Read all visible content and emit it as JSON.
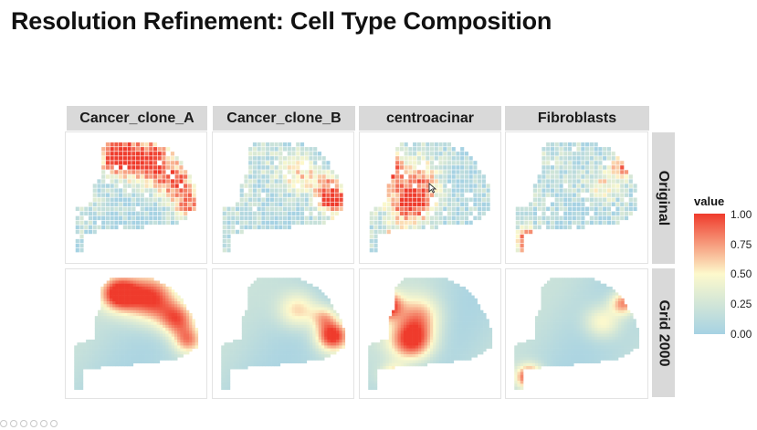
{
  "title": "Resolution Refinement: Cell Type Composition",
  "chart_data": {
    "type": "heatmap",
    "columns": [
      "Cancer_clone_A",
      "Cancer_clone_B",
      "centroacinar",
      "Fibroblasts"
    ],
    "rows": [
      "Original",
      "Grid 2000"
    ],
    "legend": {
      "title": "value",
      "range": [
        0,
        1
      ],
      "ticks": [
        "1.00",
        "0.75",
        "0.50",
        "0.25",
        "0.00"
      ],
      "colors": [
        "#a6d2e3",
        "#fdf9cc",
        "#ef3b2c"
      ]
    },
    "hotspots": {
      "Cancer_clone_A": [
        {
          "x": 0.37,
          "y": 0.16,
          "s": 0.1,
          "v": 0.95
        },
        {
          "x": 0.62,
          "y": 0.2,
          "s": 0.14,
          "v": 0.92
        },
        {
          "x": 0.82,
          "y": 0.38,
          "s": 0.1,
          "v": 0.75
        },
        {
          "x": 0.9,
          "y": 0.56,
          "s": 0.08,
          "v": 0.62
        }
      ],
      "Cancer_clone_B": [
        {
          "x": 0.88,
          "y": 0.52,
          "s": 0.09,
          "v": 0.98
        },
        {
          "x": 0.62,
          "y": 0.3,
          "s": 0.11,
          "v": 0.52
        },
        {
          "x": 0.82,
          "y": 0.36,
          "s": 0.07,
          "v": 0.45
        }
      ],
      "centroacinar": [
        {
          "x": 0.16,
          "y": 0.26,
          "s": 0.08,
          "v": 0.96
        },
        {
          "x": 0.36,
          "y": 0.56,
          "s": 0.12,
          "v": 0.94
        },
        {
          "x": 0.22,
          "y": 0.86,
          "s": 0.07,
          "v": 0.6
        },
        {
          "x": 0.42,
          "y": 0.34,
          "s": 0.12,
          "v": 0.52
        }
      ],
      "Fibroblasts": [
        {
          "x": 0.14,
          "y": 0.87,
          "s": 0.07,
          "v": 0.98
        },
        {
          "x": 0.86,
          "y": 0.24,
          "s": 0.07,
          "v": 0.72
        },
        {
          "x": 0.7,
          "y": 0.4,
          "s": 0.1,
          "v": 0.45
        }
      ]
    }
  }
}
